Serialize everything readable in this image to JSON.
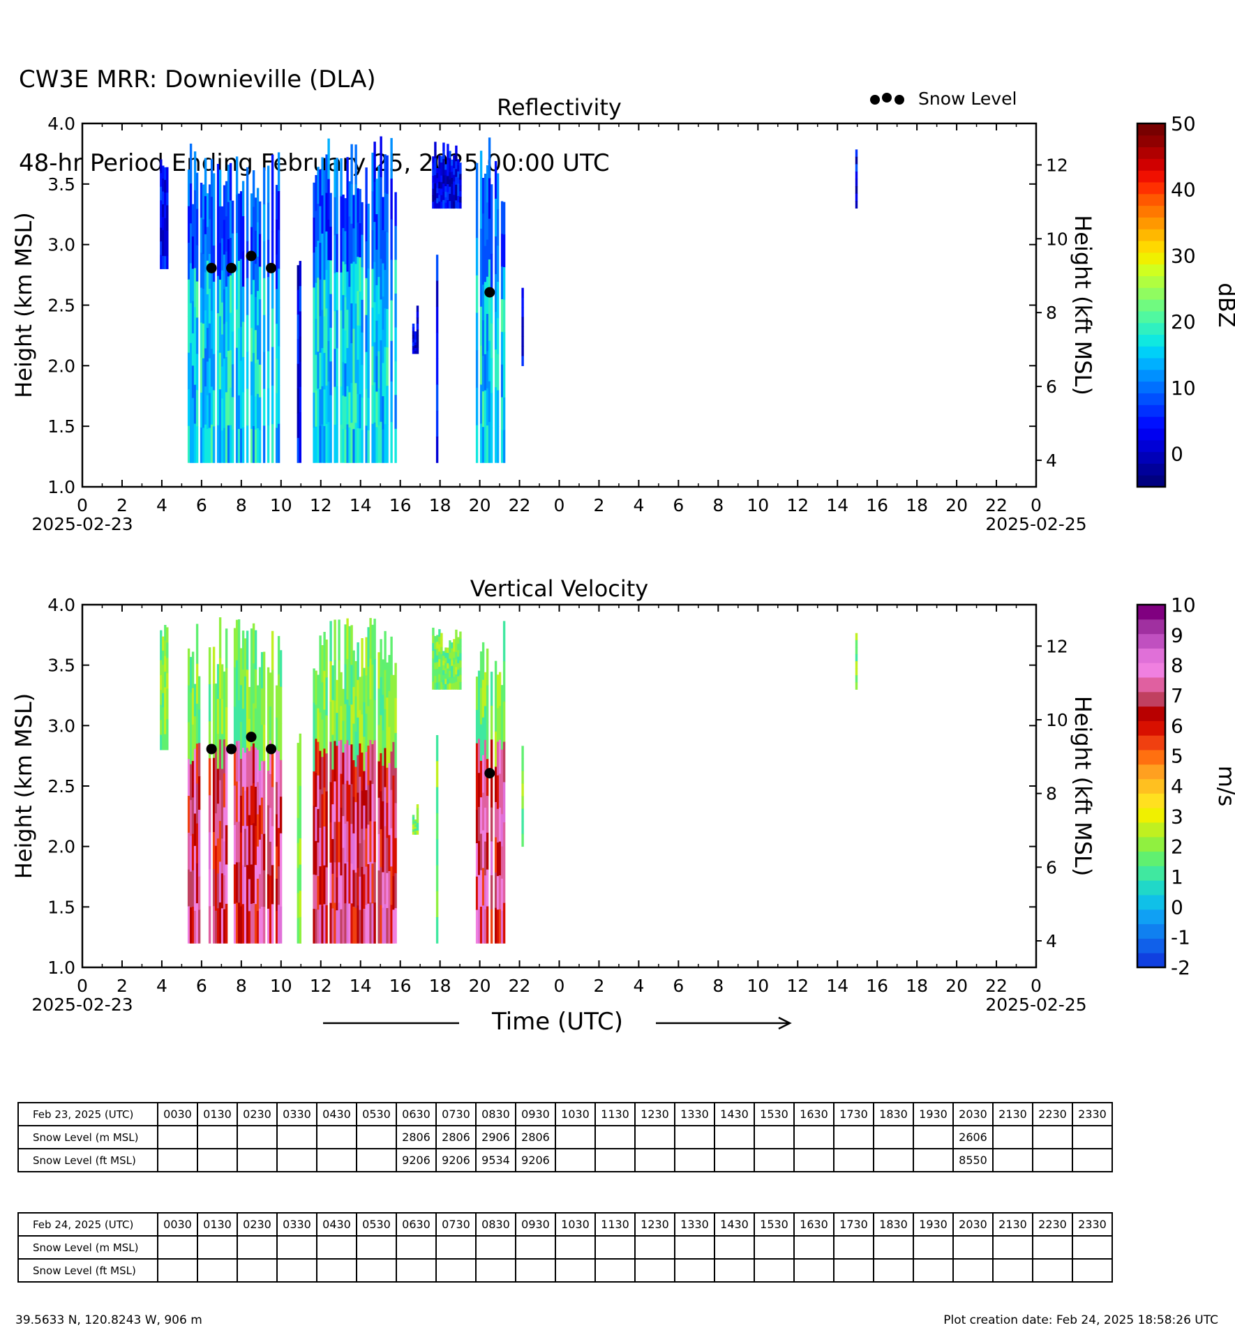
{
  "header": {
    "title_line1": "CW3E MRR: Downieville (DLA)",
    "title_line2": "48-hr Period Ending February 25, 2025 00:00 UTC"
  },
  "legend": {
    "label": "Snow Level"
  },
  "x_axis": {
    "ticks": [
      "0",
      "2",
      "4",
      "6",
      "8",
      "10",
      "12",
      "14",
      "16",
      "18",
      "20",
      "22",
      "0",
      "2",
      "4",
      "6",
      "8",
      "10",
      "12",
      "14",
      "16",
      "18",
      "20",
      "22",
      "0"
    ],
    "start_date": "2025-02-23",
    "end_date": "2025-02-25",
    "label": "Time (UTC)"
  },
  "chart_data": [
    {
      "type": "heatmap",
      "title": "Reflectivity",
      "ylabel": "Height (km MSL)",
      "ylabel_right": "Height (kft MSL)",
      "ylim": [
        1.0,
        4.0
      ],
      "yticks": [
        "1.0",
        "1.5",
        "2.0",
        "2.5",
        "3.0",
        "3.5",
        "4.0"
      ],
      "yticks_right": [
        "4",
        "6",
        "8",
        "10",
        "12"
      ],
      "xlim_hours": [
        0,
        48
      ],
      "colorbar": {
        "label": "dBZ",
        "ticks": [
          "0",
          "10",
          "20",
          "30",
          "40",
          "50"
        ],
        "range": [
          -5,
          50
        ],
        "colors": [
          "#000080",
          "#00009a",
          "#0000b8",
          "#0000d6",
          "#0000f0",
          "#0010ff",
          "#0030ff",
          "#0050ff",
          "#0070ff",
          "#0090ff",
          "#00b0ff",
          "#00d0f8",
          "#10e8e0",
          "#30f0c0",
          "#50f8a0",
          "#70fa80",
          "#90fc60",
          "#b0fe40",
          "#d0ff20",
          "#f0f000",
          "#ffd800",
          "#ffb800",
          "#ff9800",
          "#ff7800",
          "#ff5800",
          "#ff3000",
          "#f01000",
          "#d00000",
          "#b00000",
          "#900000",
          "#780000"
        ]
      },
      "snow_level": {
        "x": [
          6.5,
          7.5,
          8.5,
          9.5,
          20.5
        ],
        "y": [
          2.806,
          2.806,
          2.906,
          2.806,
          2.606
        ]
      }
    },
    {
      "type": "heatmap",
      "title": "Vertical Velocity",
      "ylabel": "Height (km MSL)",
      "ylabel_right": "Height (kft MSL)",
      "ylim": [
        1.0,
        4.0
      ],
      "yticks": [
        "1.0",
        "1.5",
        "2.0",
        "2.5",
        "3.0",
        "3.5",
        "4.0"
      ],
      "yticks_right": [
        "4",
        "6",
        "8",
        "10",
        "12"
      ],
      "xlim_hours": [
        0,
        48
      ],
      "colorbar": {
        "label": "m/s",
        "ticks": [
          "-2",
          "-1",
          "0",
          "1",
          "2",
          "3",
          "4",
          "5",
          "6",
          "7",
          "8",
          "9",
          "10"
        ],
        "range": [
          -2,
          10
        ],
        "colors": [
          "#1040e0",
          "#1060ea",
          "#1080f0",
          "#10a0f4",
          "#10c0e8",
          "#20d8c8",
          "#40e8a0",
          "#60f070",
          "#90f040",
          "#c0f020",
          "#f0f000",
          "#ffe020",
          "#ffc020",
          "#ffa020",
          "#ff7010",
          "#f04010",
          "#d81000",
          "#b80000",
          "#c04060",
          "#e060a0",
          "#f080e0",
          "#e070d8",
          "#c050c0",
          "#a030a0",
          "#800080"
        ]
      },
      "snow_level": {
        "x": [
          6.5,
          7.5,
          8.5,
          9.5,
          20.5
        ],
        "y": [
          2.806,
          2.806,
          2.906,
          2.806,
          2.606
        ]
      }
    }
  ],
  "tables": [
    {
      "date_label": "Feb 23, 2025 (UTC)",
      "times": [
        "0030",
        "0130",
        "0230",
        "0330",
        "0430",
        "0530",
        "0630",
        "0730",
        "0830",
        "0930",
        "1030",
        "1130",
        "1230",
        "1330",
        "1430",
        "1530",
        "1630",
        "1730",
        "1830",
        "1930",
        "2030",
        "2130",
        "2230",
        "2330"
      ],
      "rows": [
        {
          "label": "Snow Level (m MSL)",
          "values": [
            "",
            "",
            "",
            "",
            "",
            "",
            "2806",
            "2806",
            "2906",
            "2806",
            "",
            "",
            "",
            "",
            "",
            "",
            "",
            "",
            "",
            "",
            "2606",
            "",
            "",
            ""
          ]
        },
        {
          "label": "Snow Level (ft MSL)",
          "values": [
            "",
            "",
            "",
            "",
            "",
            "",
            "9206",
            "9206",
            "9534",
            "9206",
            "",
            "",
            "",
            "",
            "",
            "",
            "",
            "",
            "",
            "",
            "8550",
            "",
            "",
            ""
          ]
        }
      ]
    },
    {
      "date_label": "Feb 24, 2025 (UTC)",
      "times": [
        "0030",
        "0130",
        "0230",
        "0330",
        "0430",
        "0530",
        "0630",
        "0730",
        "0830",
        "0930",
        "1030",
        "1130",
        "1230",
        "1330",
        "1430",
        "1530",
        "1630",
        "1730",
        "1830",
        "1930",
        "2030",
        "2130",
        "2230",
        "2330"
      ],
      "rows": [
        {
          "label": "Snow Level (m MSL)",
          "values": [
            "",
            "",
            "",
            "",
            "",
            "",
            "",
            "",
            "",
            "",
            "",
            "",
            "",
            "",
            "",
            "",
            "",
            "",
            "",
            "",
            "",
            "",
            "",
            ""
          ]
        },
        {
          "label": "Snow Level (ft MSL)",
          "values": [
            "",
            "",
            "",
            "",
            "",
            "",
            "",
            "",
            "",
            "",
            "",
            "",
            "",
            "",
            "",
            "",
            "",
            "",
            "",
            "",
            "",
            "",
            "",
            ""
          ]
        }
      ]
    }
  ],
  "footer": {
    "location": "39.5633 N, 120.8243 W, 906 m",
    "created": "Plot creation date: Feb 24, 2025 18:58:26 UTC"
  }
}
